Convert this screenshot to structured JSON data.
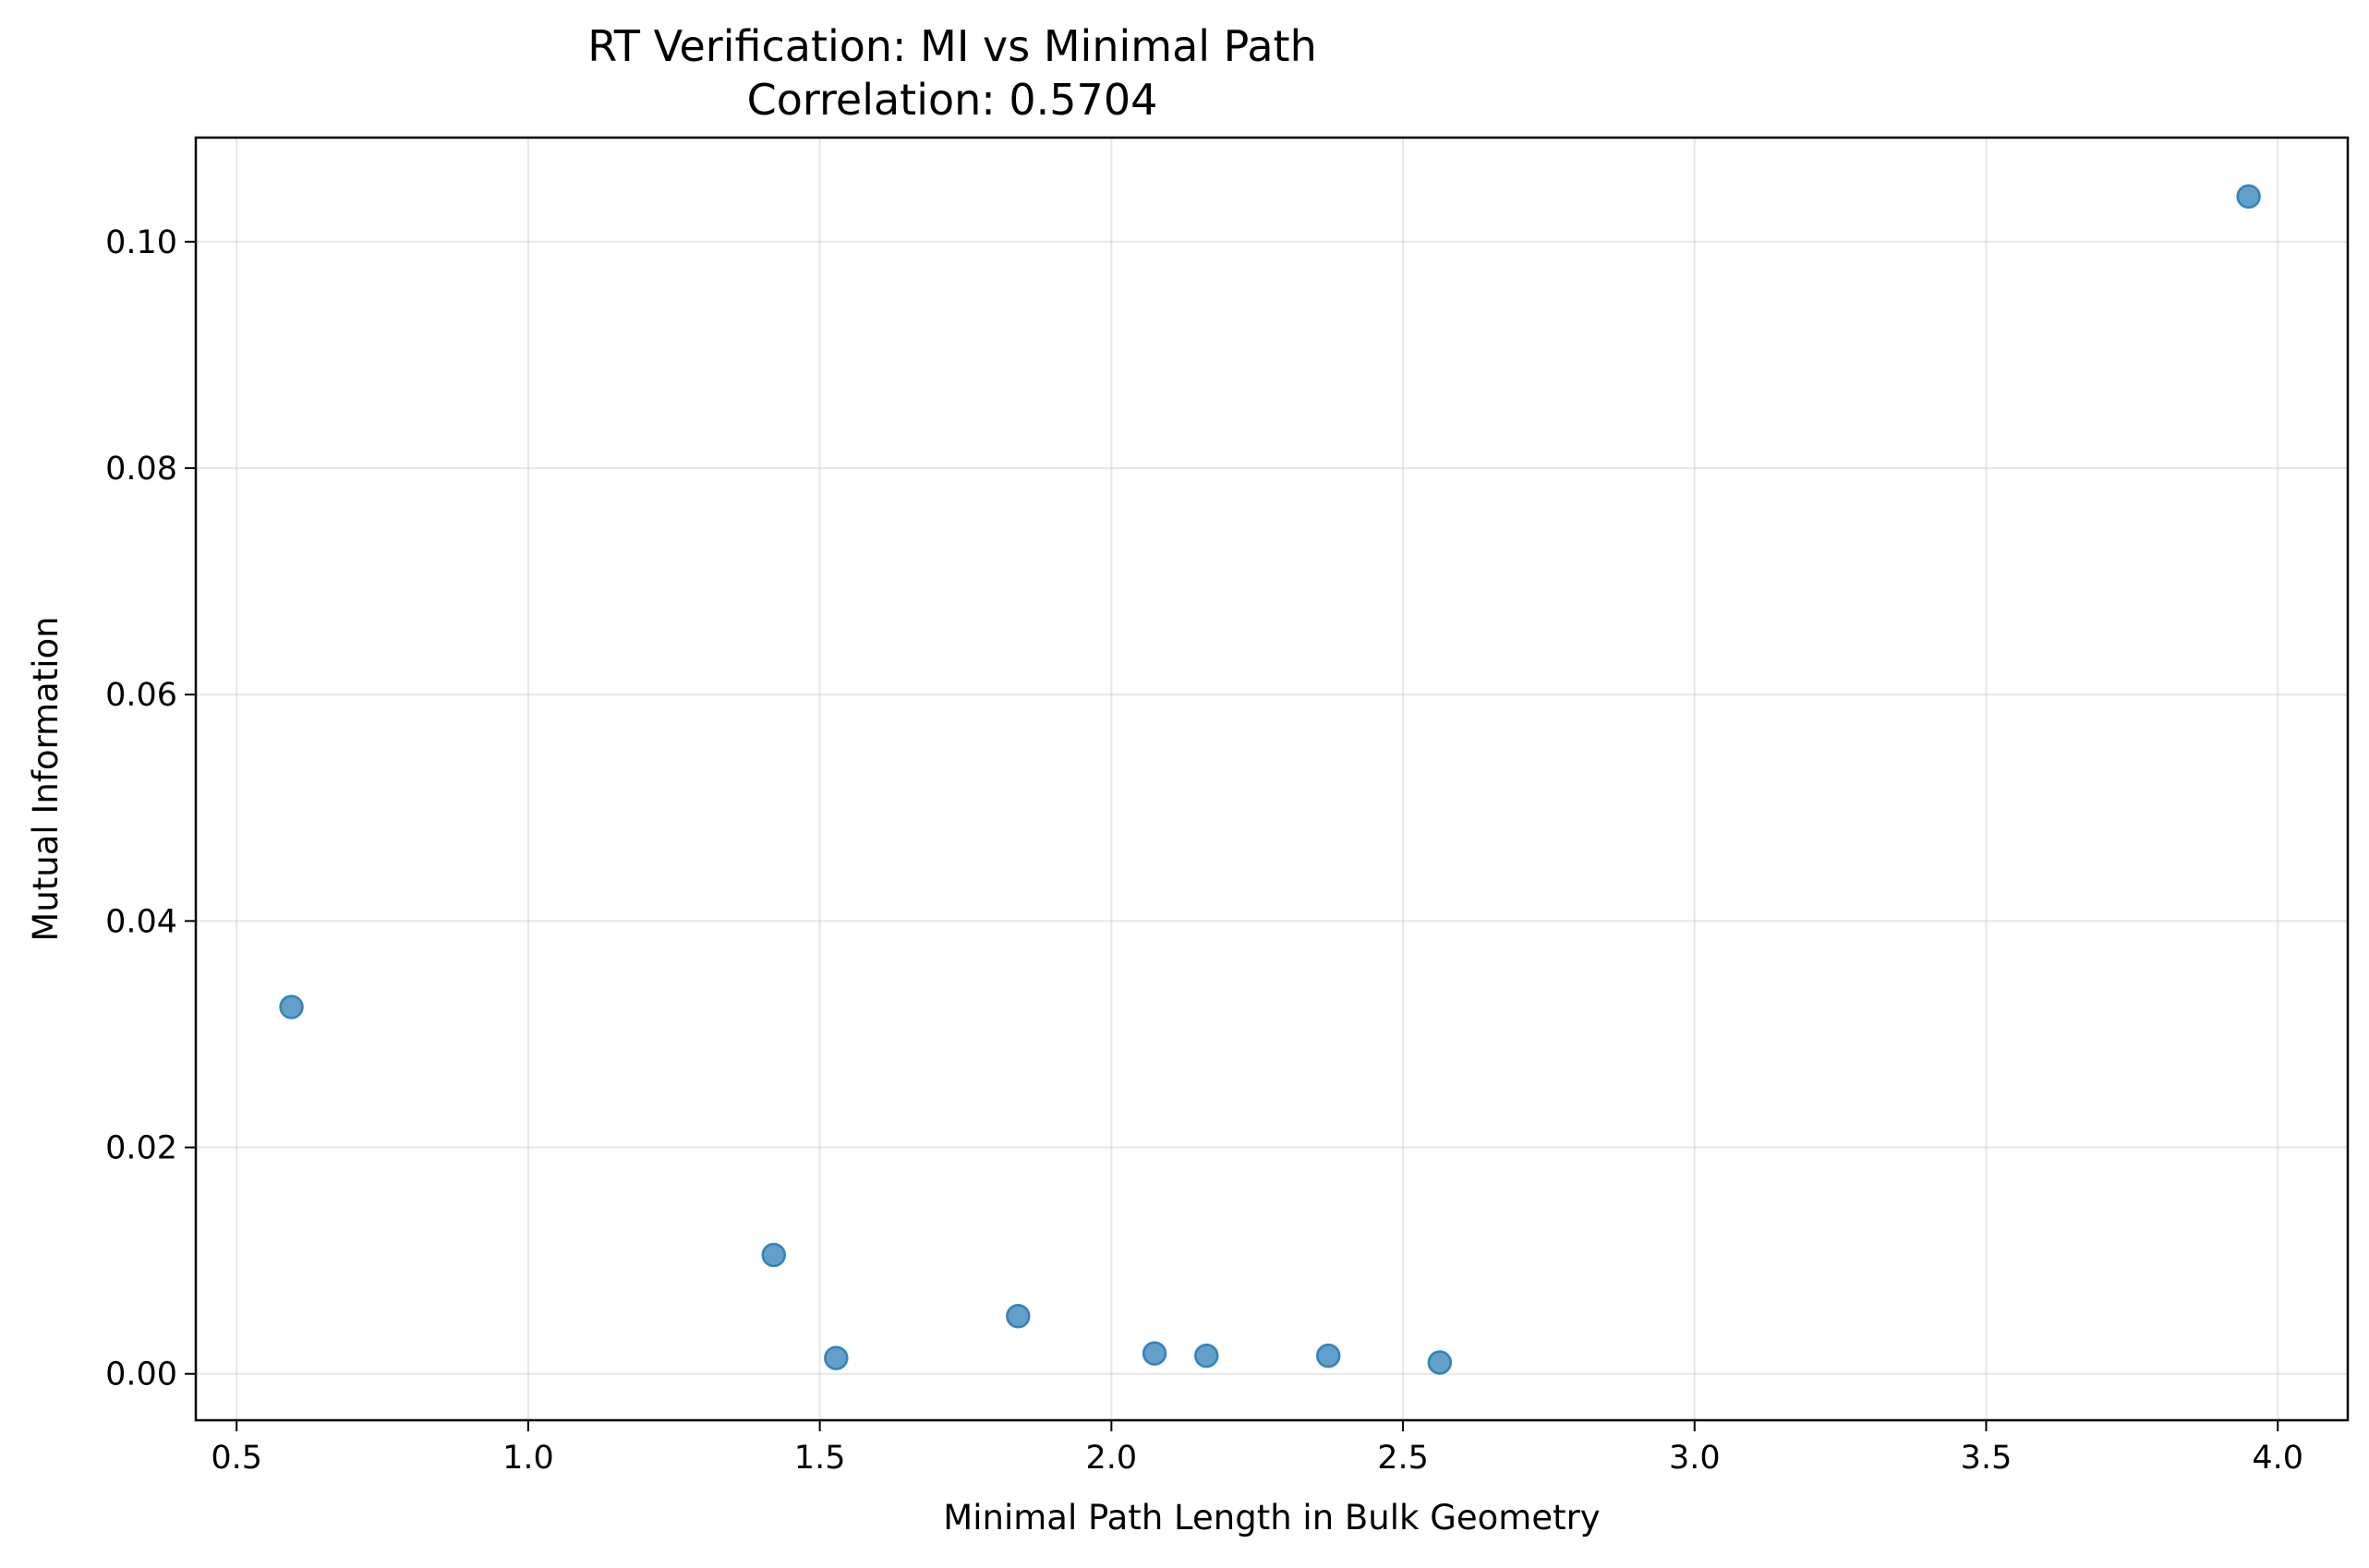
{
  "chart_data": {
    "type": "scatter",
    "title": "RT Verification: MI vs Minimal Path",
    "subtitle": "Correlation: 0.5704",
    "xlabel": "Minimal Path Length in Bulk Geometry",
    "ylabel": "Mutual Information",
    "xlim": [
      0.43,
      4.12
    ],
    "ylim": [
      -0.0041,
      0.1092
    ],
    "xticks": [
      0.5,
      1.0,
      1.5,
      2.0,
      2.5,
      3.0,
      3.5,
      4.0
    ],
    "xtick_labels": [
      "0.5",
      "1.0",
      "1.5",
      "2.0",
      "2.5",
      "3.0",
      "3.5",
      "4.0"
    ],
    "yticks": [
      0.0,
      0.02,
      0.04,
      0.06,
      0.08,
      0.1
    ],
    "ytick_labels": [
      "0.00",
      "0.02",
      "0.04",
      "0.06",
      "0.08",
      "0.10"
    ],
    "grid": true,
    "marker_color": "#1f77b4",
    "marker_edge_color": "#1f77b4",
    "marker_alpha": 0.7,
    "points": [
      {
        "x": 0.594,
        "y": 0.0324
      },
      {
        "x": 1.421,
        "y": 0.0105
      },
      {
        "x": 1.528,
        "y": 0.0014
      },
      {
        "x": 1.84,
        "y": 0.0051
      },
      {
        "x": 2.074,
        "y": 0.0018
      },
      {
        "x": 2.163,
        "y": 0.0016
      },
      {
        "x": 2.372,
        "y": 0.0016
      },
      {
        "x": 2.563,
        "y": 0.001
      },
      {
        "x": 3.95,
        "y": 0.104
      }
    ]
  }
}
